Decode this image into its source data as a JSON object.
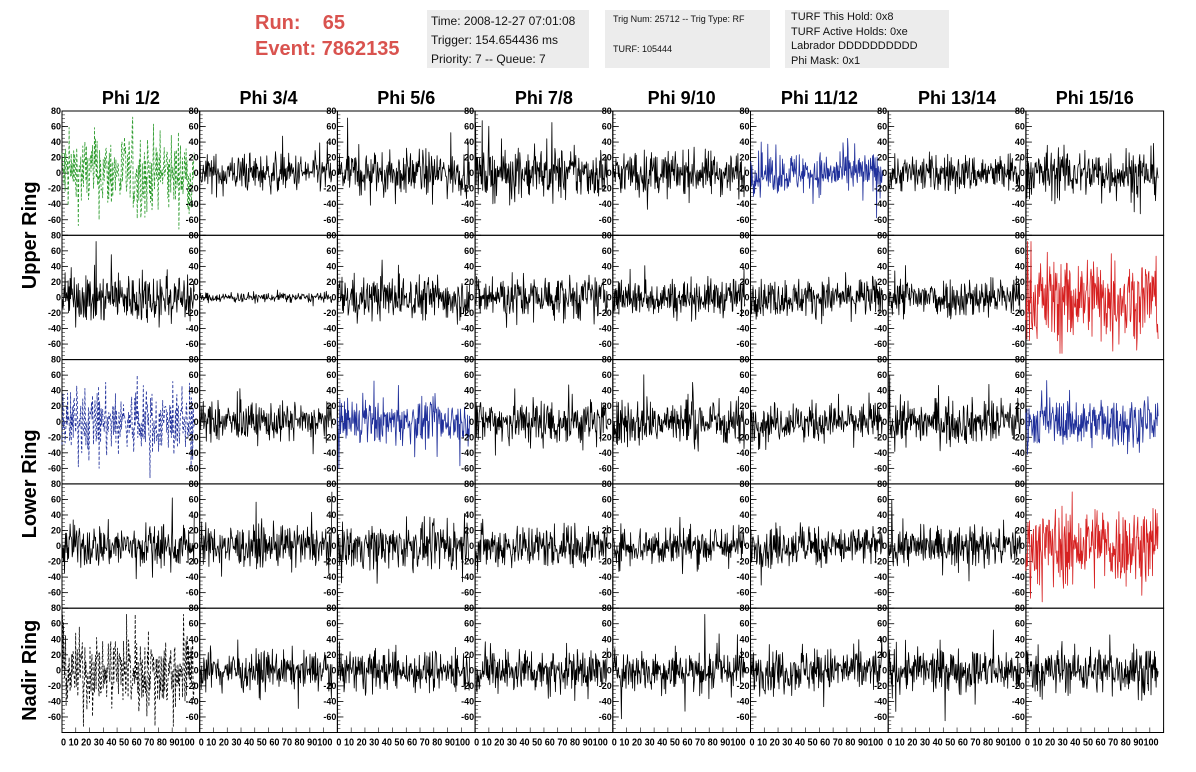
{
  "header": {
    "run_line": "Run:    65",
    "event_line": "Event: 7862135",
    "info1": [
      "Time: 2008-12-27 07:01:08",
      "Trigger: 154.654436 ms",
      "Priority: 7 -- Queue: 7"
    ],
    "info2": [
      "Trig Num: 25712 -- Trig Type: RF",
      "",
      "TURF: 105444"
    ],
    "info3": [
      "TURF This Hold: 0x8",
      "TURF Active Holds: 0xe",
      "Labrador DDDDDDDDDD",
      "Phi Mask: 0x1"
    ],
    "colors": {
      "run_text": "#d9534f",
      "panel_bg": "#ececec"
    }
  },
  "chart_data": {
    "type": "line",
    "columns": [
      "Phi 1/2",
      "Phi 3/4",
      "Phi 5/6",
      "Phi 7/8",
      "Phi 9/10",
      "Phi 11/12",
      "Phi 13/14",
      "Phi 15/16"
    ],
    "ring_labels": [
      {
        "label": "Upper Ring",
        "rows": [
          0,
          1
        ]
      },
      {
        "label": "Lower Ring",
        "rows": [
          2,
          3
        ]
      },
      {
        "label": "Nadir Ring",
        "rows": [
          4
        ]
      }
    ],
    "ylim": [
      -80,
      80
    ],
    "xlim": [
      0,
      100
    ],
    "yticks": [
      -80,
      -60,
      -40,
      -20,
      0,
      20,
      40,
      60,
      80
    ],
    "ytick_labels": [
      "-60",
      "-40",
      "-20",
      "0",
      "20",
      "40",
      "60",
      "80"
    ],
    "xtick_labels": [
      "0",
      "10",
      "20",
      "30",
      "40",
      "50",
      "60",
      "70",
      "80",
      "90",
      "100"
    ],
    "xtick_text": "0 10 20 30 40 50 60 70 80 90100",
    "waveform_x_range": [
      0,
      96
    ],
    "series_colors": {
      "normal": "#000000",
      "blue": "#1f2f9a",
      "green": "#2a9a2a",
      "red": "#d62020"
    },
    "panels": [
      [
        {
          "color": "green",
          "dashed": true,
          "amp": 26
        },
        {
          "color": "normal",
          "amp": 12
        },
        {
          "color": "normal",
          "amp": 14
        },
        {
          "color": "normal",
          "amp": 16
        },
        {
          "color": "normal",
          "amp": 14
        },
        {
          "color": "blue",
          "amp": 13
        },
        {
          "color": "normal",
          "amp": 12
        },
        {
          "color": "normal",
          "amp": 16
        }
      ],
      [
        {
          "color": "normal",
          "amp": 16
        },
        {
          "color": "normal",
          "amp": 3
        },
        {
          "color": "normal",
          "amp": 14
        },
        {
          "color": "normal",
          "amp": 14
        },
        {
          "color": "normal",
          "amp": 12
        },
        {
          "color": "normal",
          "amp": 12
        },
        {
          "color": "normal",
          "amp": 13
        },
        {
          "color": "red",
          "amp": 28
        }
      ],
      [
        {
          "color": "blue",
          "dashed": true,
          "amp": 22
        },
        {
          "color": "normal",
          "amp": 12
        },
        {
          "color": "blue",
          "amp": 14
        },
        {
          "color": "normal",
          "amp": 16
        },
        {
          "color": "normal",
          "amp": 15
        },
        {
          "color": "normal",
          "amp": 12
        },
        {
          "color": "normal",
          "amp": 14
        },
        {
          "color": "blue",
          "amp": 15
        }
      ],
      [
        {
          "color": "normal",
          "amp": 14
        },
        {
          "color": "normal",
          "amp": 13
        },
        {
          "color": "normal",
          "amp": 14
        },
        {
          "color": "normal",
          "amp": 14
        },
        {
          "color": "normal",
          "amp": 13
        },
        {
          "color": "normal",
          "amp": 13
        },
        {
          "color": "normal",
          "amp": 12
        },
        {
          "color": "red",
          "amp": 26
        }
      ],
      [
        {
          "color": "normal",
          "dashed": true,
          "amp": 26
        },
        {
          "color": "normal",
          "amp": 12
        },
        {
          "color": "normal",
          "amp": 13
        },
        {
          "color": "normal",
          "amp": 14
        },
        {
          "color": "normal",
          "amp": 14
        },
        {
          "color": "normal",
          "amp": 14
        },
        {
          "color": "normal",
          "amp": 14
        },
        {
          "color": "normal",
          "amp": 15
        }
      ]
    ]
  }
}
